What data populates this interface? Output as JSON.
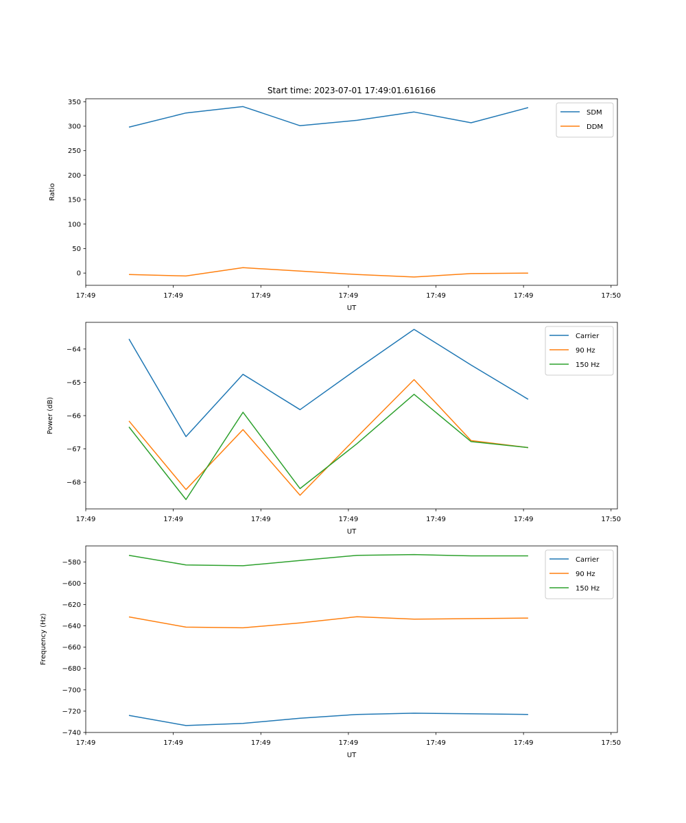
{
  "colors": {
    "c0": "#1f77b4",
    "c1": "#ff7f0e",
    "c2": "#2ca02c"
  },
  "chart_data": [
    {
      "type": "line",
      "title": "Start time: 2023-07-01 17:49:01.616166",
      "xlabel": "UT",
      "ylabel": "Ratio",
      "xlim": [
        0,
        9.23
      ],
      "ylim": [
        -25,
        356
      ],
      "x": [
        0.75,
        1.74,
        2.73,
        3.72,
        4.71,
        5.7,
        6.69,
        7.68
      ],
      "xticks": [
        0,
        1.52,
        3.04,
        4.56,
        6.08,
        7.6,
        9.12
      ],
      "xtick_labels": [
        "17:49",
        "17:49",
        "17:49",
        "17:49",
        "17:49",
        "17:49",
        "17:50"
      ],
      "yticks": [
        0,
        50,
        100,
        150,
        200,
        250,
        300,
        350
      ],
      "ytick_labels": [
        "0",
        "50",
        "100",
        "150",
        "200",
        "250",
        "300",
        "350"
      ],
      "legend_position": "top-right",
      "series": [
        {
          "name": "SDM",
          "color": "#1f77b4",
          "values": [
            298,
            327,
            340,
            301,
            312,
            329,
            307,
            338
          ]
        },
        {
          "name": "DDM",
          "color": "#ff7f0e",
          "values": [
            -3,
            -6,
            11,
            4,
            -3,
            -8,
            -1,
            0
          ]
        }
      ]
    },
    {
      "type": "line",
      "title": "",
      "xlabel": "UT",
      "ylabel": "Power (dB)",
      "xlim": [
        0,
        9.23
      ],
      "ylim": [
        -68.8,
        -63.2
      ],
      "x": [
        0.75,
        1.74,
        2.73,
        3.72,
        4.71,
        5.7,
        6.69,
        7.68
      ],
      "xticks": [
        0,
        1.52,
        3.04,
        4.56,
        6.08,
        7.6,
        9.12
      ],
      "xtick_labels": [
        "17:49",
        "17:49",
        "17:49",
        "17:49",
        "17:49",
        "17:49",
        "17:50"
      ],
      "yticks": [
        -68,
        -67,
        -66,
        -65,
        -64
      ],
      "ytick_labels": [
        "−68",
        "−67",
        "−66",
        "−65",
        "−64"
      ],
      "legend_position": "top-right",
      "series": [
        {
          "name": "Carrier",
          "color": "#1f77b4",
          "values": [
            -63.7,
            -66.63,
            -64.76,
            -65.82,
            -64.6,
            -63.41,
            -64.48,
            -65.51
          ]
        },
        {
          "name": "90 Hz",
          "color": "#ff7f0e",
          "values": [
            -66.16,
            -68.22,
            -66.42,
            -68.39,
            -66.64,
            -64.92,
            -66.75,
            -66.96
          ]
        },
        {
          "name": "150 Hz",
          "color": "#2ca02c",
          "values": [
            -66.34,
            -68.52,
            -65.9,
            -68.19,
            -66.84,
            -65.36,
            -66.78,
            -66.96
          ]
        }
      ]
    },
    {
      "type": "line",
      "title": "",
      "xlabel": "UT",
      "ylabel": "Frequency (Hz)",
      "xlim": [
        0,
        9.23
      ],
      "ylim": [
        -740,
        -565
      ],
      "x": [
        0.75,
        1.74,
        2.73,
        3.72,
        4.71,
        5.7,
        6.69,
        7.68
      ],
      "xticks": [
        0,
        1.52,
        3.04,
        4.56,
        6.08,
        7.6,
        9.12
      ],
      "xtick_labels": [
        "17:49",
        "17:49",
        "17:49",
        "17:49",
        "17:49",
        "17:49",
        "17:50"
      ],
      "yticks": [
        -740,
        -720,
        -700,
        -680,
        -660,
        -640,
        -620,
        -600,
        -580
      ],
      "ytick_labels": [
        "−740",
        "−720",
        "−700",
        "−680",
        "−660",
        "−640",
        "−620",
        "−600",
        "−580"
      ],
      "legend_position": "top-right",
      "series": [
        {
          "name": "Carrier",
          "color": "#1f77b4",
          "values": [
            -724,
            -733.5,
            -731.5,
            -726.7,
            -723.1,
            -721.9,
            -722.5,
            -723.1
          ]
        },
        {
          "name": "90 Hz",
          "color": "#ff7f0e",
          "values": [
            -631.6,
            -641.2,
            -641.8,
            -637.2,
            -631.4,
            -633.7,
            -633.2,
            -632.7
          ]
        },
        {
          "name": "150 Hz",
          "color": "#2ca02c",
          "values": [
            -573.8,
            -582.8,
            -583.6,
            -578.7,
            -573.8,
            -573.1,
            -574.3,
            -574.3
          ]
        }
      ]
    }
  ]
}
